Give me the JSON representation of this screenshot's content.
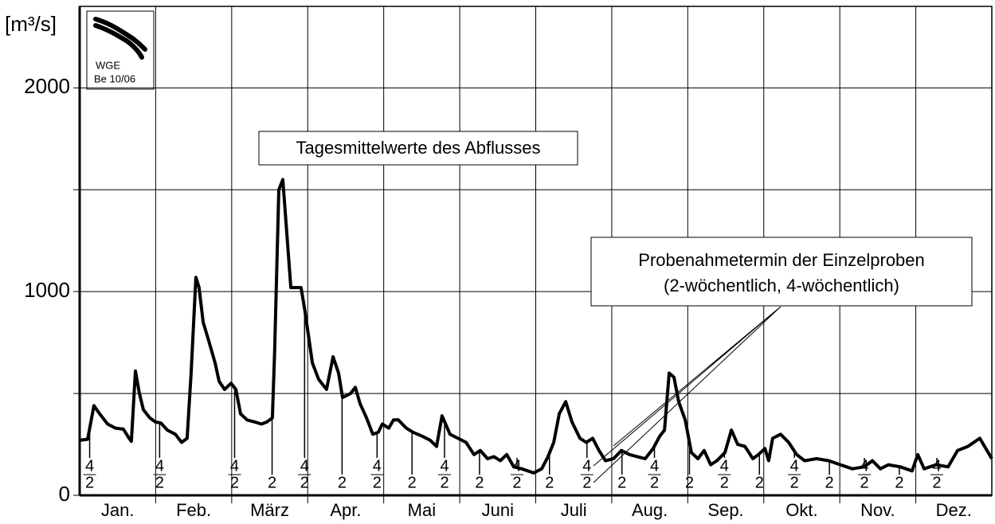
{
  "chart_data": {
    "type": "line",
    "y_label": "[m³/s]",
    "logo": [
      "WGE",
      "Be 10/06"
    ],
    "annotations": [
      "Tagesmittelwerte des Abflusses",
      "Probenahmetermin der Einzelproben",
      "(2-wöchentlich, 4-wöchentlich)"
    ],
    "categories": [
      "Jan.",
      "Feb.",
      "März",
      "Apr.",
      "Mai",
      "Juni",
      "Juli",
      "Aug.",
      "Sep.",
      "Okt.",
      "Nov.",
      "Dez."
    ],
    "xlim": [
      0,
      365
    ],
    "ylim": [
      0,
      2400
    ],
    "yticks": [
      0,
      1000,
      2000
    ],
    "minor_yticks": [
      500,
      1500
    ],
    "grid": true,
    "color": "#000000",
    "x": [
      0,
      3.2,
      5.7,
      8,
      11.2,
      14.3,
      17.5,
      19.8,
      20.7,
      22.3,
      23.9,
      25.5,
      28.1,
      30.3,
      32.5,
      35.1,
      38.3,
      40.8,
      43,
      44.6,
      46.5,
      47.8,
      49.4,
      51.6,
      54.2,
      55.8,
      58,
      60.6,
      62.5,
      64.4,
      67,
      70.1,
      72.7,
      74.9,
      77.1,
      78,
      79.7,
      81.3,
      84.5,
      88.6,
      90.2,
      93.1,
      95.6,
      98.8,
      101.4,
      103.6,
      105.2,
      108.4,
      110.3,
      112.2,
      114.8,
      117.3,
      119.5,
      121.1,
      123.7,
      125.6,
      127.5,
      130.7,
      133.3,
      137.1,
      140.3,
      142.8,
      145,
      148.2,
      151.4,
      154.6,
      157.8,
      160.3,
      163.2,
      165.8,
      168.3,
      170.9,
      173.7,
      176.9,
      181.7,
      184.9,
      187.4,
      189.7,
      191.9,
      194.5,
      197,
      200.2,
      202.7,
      205.3,
      207.8,
      210.4,
      213.6,
      216.8,
      220,
      223.1,
      226.3,
      229.5,
      232.1,
      234,
      235.9,
      237.8,
      239.7,
      242.3,
      244.8,
      247.4,
      249.9,
      252.5,
      255,
      258.2,
      260.8,
      263.3,
      266.2,
      269.4,
      271.6,
      274.2,
      275.7,
      277.3,
      280.5,
      283.7,
      286.9,
      290.1,
      294.9,
      299.7,
      304.4,
      309.2,
      314,
      317.2,
      320.4,
      323.6,
      328.3,
      333.1,
      335.4,
      337.9,
      342.7,
      347.5,
      351.3,
      355.4,
      360.2,
      365
    ],
    "values": [
      270,
      275,
      440,
      400,
      350,
      330,
      325,
      280,
      265,
      610,
      500,
      420,
      380,
      360,
      355,
      320,
      300,
      260,
      280,
      600,
      1070,
      1020,
      850,
      760,
      650,
      560,
      520,
      550,
      520,
      400,
      370,
      360,
      350,
      360,
      380,
      700,
      1500,
      1550,
      1020,
      1020,
      900,
      650,
      570,
      520,
      680,
      600,
      480,
      500,
      530,
      450,
      380,
      300,
      310,
      350,
      330,
      370,
      370,
      330,
      310,
      290,
      270,
      240,
      390,
      300,
      280,
      260,
      200,
      220,
      180,
      190,
      170,
      200,
      140,
      130,
      110,
      130,
      190,
      260,
      400,
      460,
      360,
      280,
      260,
      280,
      220,
      170,
      180,
      220,
      200,
      190,
      180,
      230,
      290,
      320,
      600,
      580,
      460,
      370,
      210,
      180,
      220,
      150,
      170,
      210,
      320,
      250,
      240,
      180,
      200,
      230,
      170,
      280,
      300,
      260,
      200,
      170,
      180,
      170,
      150,
      130,
      140,
      170,
      130,
      150,
      140,
      120,
      200,
      130,
      150,
      140,
      220,
      240,
      280,
      180
    ],
    "sample_label_2": "2",
    "sample_label_4": "4",
    "samples_2": [
      4,
      32,
      62,
      77,
      90,
      105,
      119,
      133,
      146,
      160,
      175,
      188,
      203,
      217,
      230,
      244,
      258,
      272,
      286,
      300,
      314,
      328,
      343
    ],
    "samples_4": [
      4,
      32,
      62,
      90,
      119,
      146,
      175,
      203,
      230,
      258,
      286,
      314,
      343
    ]
  }
}
